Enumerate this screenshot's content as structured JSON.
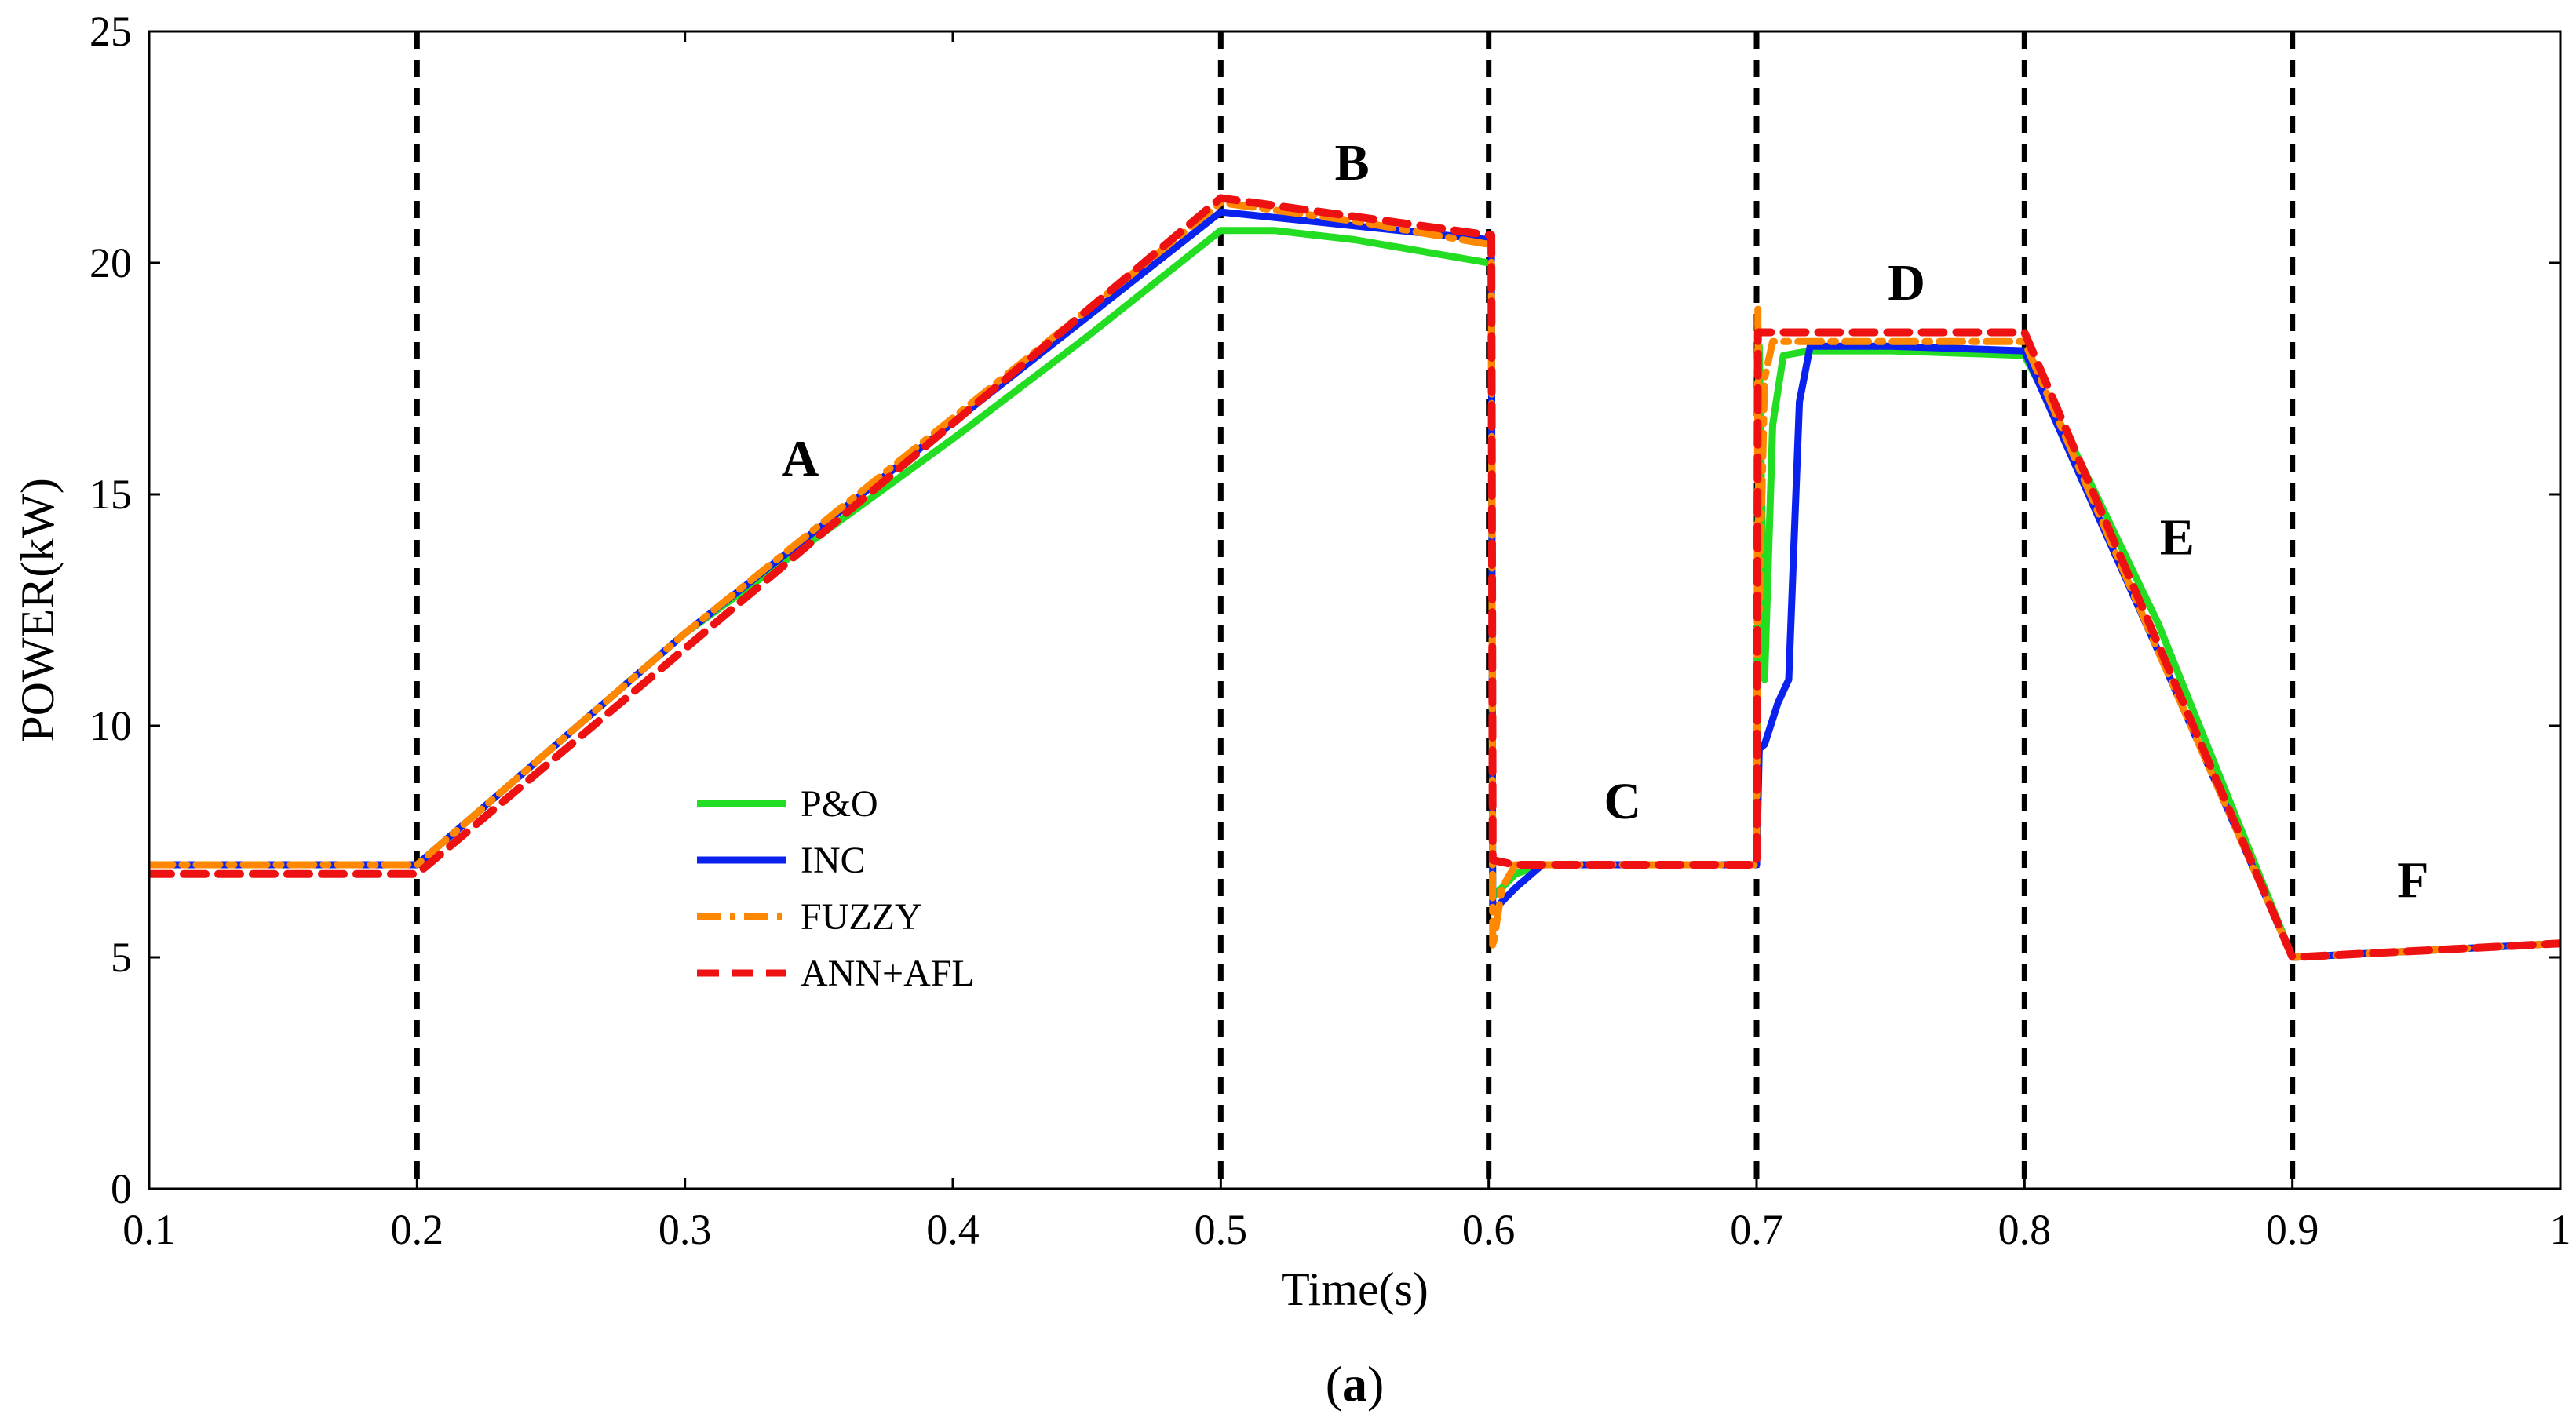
{
  "chart_data": {
    "type": "line",
    "title": "",
    "xlabel": "Time(s)",
    "ylabel": "POWER(kW)",
    "caption": {
      "open": "(",
      "letter": "a",
      "close": ")"
    },
    "xlim": [
      0.1,
      1.0
    ],
    "ylim": [
      0,
      25
    ],
    "xticks": [
      0.1,
      0.2,
      0.3,
      0.4,
      0.5,
      0.6,
      0.7,
      0.8,
      0.9,
      1.0
    ],
    "xtick_labels": [
      "0.1",
      "0.2",
      "0.3",
      "0.4",
      "0.5",
      "0.6",
      "0.7",
      "0.8",
      "0.9",
      "1"
    ],
    "yticks": [
      0,
      5,
      10,
      15,
      20,
      25
    ],
    "ytick_labels": [
      "0",
      "5",
      "10",
      "15",
      "20",
      "25"
    ],
    "grid": false,
    "legend_position": "center-left",
    "region_boundaries": [
      0.2,
      0.5,
      0.6,
      0.7,
      0.8,
      0.9
    ],
    "region_labels": [
      {
        "label": "A",
        "x": 0.343,
        "y": 15.4
      },
      {
        "label": "B",
        "x": 0.549,
        "y": 21.8
      },
      {
        "label": "C",
        "x": 0.65,
        "y": 8.0
      },
      {
        "label": "D",
        "x": 0.756,
        "y": 19.2
      },
      {
        "label": "E",
        "x": 0.857,
        "y": 13.7
      },
      {
        "label": "F",
        "x": 0.945,
        "y": 6.3
      }
    ],
    "series": [
      {
        "name": "P&O",
        "color": "#22dd22",
        "dash": "solid",
        "x": [
          0.1,
          0.2,
          0.3,
          0.35,
          0.4,
          0.45,
          0.5,
          0.52,
          0.55,
          0.6,
          0.601,
          0.6015,
          0.61,
          0.62,
          0.65,
          0.7,
          0.701,
          0.703,
          0.706,
          0.71,
          0.72,
          0.75,
          0.8,
          0.82,
          0.85,
          0.9,
          0.95,
          1.0
        ],
        "y": [
          7.0,
          7.0,
          12.0,
          14.1,
          16.2,
          18.4,
          20.7,
          20.7,
          20.5,
          20.0,
          20.0,
          6.3,
          6.8,
          7.0,
          7.0,
          7.0,
          18.2,
          11.0,
          16.5,
          18.0,
          18.1,
          18.1,
          18.0,
          15.8,
          12.2,
          5.0,
          5.15,
          5.3
        ]
      },
      {
        "name": "INC",
        "color": "#0a22ee",
        "dash": "solid",
        "x": [
          0.1,
          0.2,
          0.3,
          0.5,
          0.6,
          0.601,
          0.6015,
          0.61,
          0.62,
          0.65,
          0.7,
          0.701,
          0.703,
          0.708,
          0.712,
          0.716,
          0.72,
          0.75,
          0.8,
          0.85,
          0.9,
          0.95,
          1.0
        ],
        "y": [
          7.0,
          7.0,
          12.0,
          21.1,
          20.5,
          20.5,
          6.0,
          6.5,
          7.0,
          7.0,
          7.0,
          9.5,
          9.6,
          10.5,
          11.0,
          17.0,
          18.2,
          18.2,
          18.1,
          11.6,
          5.0,
          5.15,
          5.3
        ]
      },
      {
        "name": "FUZZY",
        "color": "#ff8800",
        "dash": "dashdot",
        "x": [
          0.1,
          0.2,
          0.3,
          0.5,
          0.55,
          0.6,
          0.601,
          0.6015,
          0.605,
          0.61,
          0.65,
          0.7,
          0.7005,
          0.701,
          0.703,
          0.706,
          0.71,
          0.75,
          0.8,
          0.85,
          0.9,
          0.95,
          1.0
        ],
        "y": [
          7.0,
          7.0,
          12.0,
          21.3,
          20.9,
          20.4,
          20.4,
          5.2,
          6.5,
          7.0,
          7.0,
          7.0,
          19.0,
          12.5,
          17.5,
          18.3,
          18.3,
          18.3,
          18.3,
          11.6,
          5.0,
          5.15,
          5.3
        ]
      },
      {
        "name": "ANN+AFL",
        "color": "#ee1111",
        "dash": "dashed",
        "x": [
          0.1,
          0.2,
          0.5,
          0.6,
          0.601,
          0.6015,
          0.61,
          0.65,
          0.7,
          0.7005,
          0.702,
          0.75,
          0.8,
          0.9,
          1.0
        ],
        "y": [
          6.8,
          6.8,
          21.4,
          20.6,
          20.6,
          7.1,
          7.0,
          7.0,
          7.0,
          18.5,
          18.5,
          18.5,
          18.5,
          5.0,
          5.3
        ]
      }
    ]
  }
}
